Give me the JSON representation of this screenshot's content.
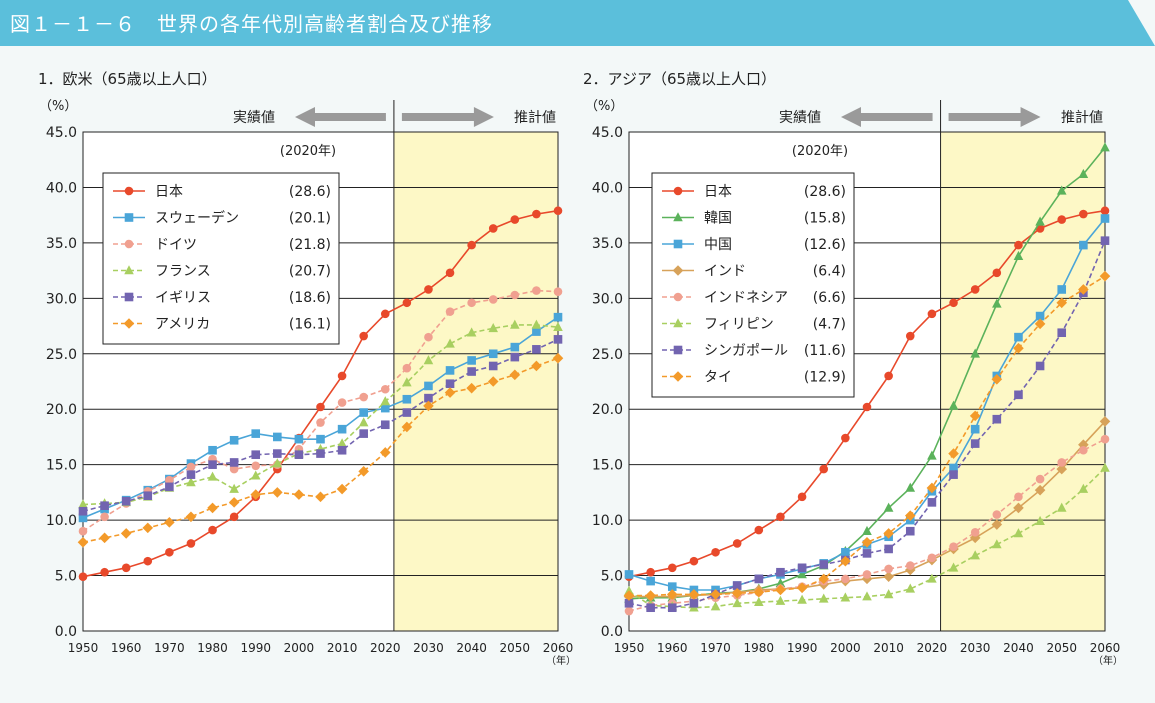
{
  "figure_title": "図１－１－６　世界の各年代別高齢者割合及び推移",
  "colors": {
    "banner": "#5bbfdb",
    "projection_bg": "#fdf8c6",
    "arrow": "#9a9a9a"
  },
  "chart_data": [
    {
      "type": "line",
      "title": "1．欧米（65歳以上人口）",
      "ylabel": "（%）",
      "xunit": "（年）",
      "actual_label": "実績値",
      "projection_label": "推計値",
      "legend_header": "(2020年)",
      "legend_placement": "top-left",
      "ylim": [
        0,
        45
      ],
      "xlim": [
        1950,
        2060
      ],
      "yticks": [
        "0.0",
        "5.0",
        "10.0",
        "15.0",
        "20.0",
        "25.0",
        "30.0",
        "35.0",
        "40.0",
        "45.0"
      ],
      "xticks": [
        "1950",
        "1960",
        "1970",
        "1980",
        "1990",
        "2000",
        "2010",
        "2020",
        "2030",
        "2040",
        "2050",
        "2060"
      ],
      "projection_start": 2022,
      "grid": true,
      "x": [
        1950,
        1955,
        1960,
        1965,
        1970,
        1975,
        1980,
        1985,
        1990,
        1995,
        2000,
        2005,
        2010,
        2015,
        2020,
        2025,
        2030,
        2035,
        2040,
        2045,
        2050,
        2055,
        2060
      ],
      "series": [
        {
          "name": "日本",
          "value_2020": "(28.6)",
          "color": "#e8492b",
          "marker": "circle",
          "dash": false,
          "values": [
            4.9,
            5.3,
            5.7,
            6.3,
            7.1,
            7.9,
            9.1,
            10.3,
            12.1,
            14.6,
            17.4,
            20.2,
            23.0,
            26.6,
            28.6,
            29.6,
            30.8,
            32.3,
            34.8,
            36.3,
            37.1,
            37.6,
            37.9
          ]
        },
        {
          "name": "スウェーデン",
          "value_2020": "(20.1)",
          "color": "#4aa5d8",
          "marker": "square",
          "dash": false,
          "values": [
            10.2,
            11.0,
            11.8,
            12.7,
            13.7,
            15.1,
            16.3,
            17.2,
            17.8,
            17.5,
            17.3,
            17.3,
            18.2,
            19.7,
            20.1,
            20.9,
            22.1,
            23.5,
            24.4,
            25.0,
            25.6,
            27.0,
            28.3
          ]
        },
        {
          "name": "ドイツ",
          "value_2020": "(21.8)",
          "color": "#f0a090",
          "marker": "circle",
          "dash": true,
          "values": [
            9.0,
            10.3,
            11.5,
            12.6,
            13.6,
            14.8,
            15.5,
            14.6,
            14.9,
            15.0,
            16.4,
            18.8,
            20.6,
            21.1,
            21.8,
            23.7,
            26.5,
            28.8,
            29.6,
            29.9,
            30.3,
            30.7,
            30.6
          ]
        },
        {
          "name": "フランス",
          "value_2020": "(20.7)",
          "color": "#a8cf60",
          "marker": "triangle",
          "dash": true,
          "values": [
            11.4,
            11.5,
            11.6,
            12.1,
            12.9,
            13.4,
            13.9,
            12.8,
            14.0,
            15.1,
            16.0,
            16.4,
            16.9,
            18.8,
            20.7,
            22.4,
            24.4,
            25.9,
            26.9,
            27.3,
            27.6,
            27.6,
            27.4
          ]
        },
        {
          "name": "イギリス",
          "value_2020": "(18.6)",
          "color": "#7264b0",
          "marker": "square",
          "dash": true,
          "values": [
            10.8,
            11.3,
            11.7,
            12.2,
            13.0,
            14.1,
            15.0,
            15.2,
            15.9,
            16.0,
            15.9,
            16.0,
            16.3,
            17.8,
            18.6,
            19.7,
            21.0,
            22.3,
            23.4,
            23.9,
            24.7,
            25.4,
            26.3
          ]
        },
        {
          "name": "アメリカ",
          "value_2020": "(16.1)",
          "color": "#f39a2a",
          "marker": "diamond",
          "dash": true,
          "values": [
            8.0,
            8.4,
            8.8,
            9.3,
            9.8,
            10.3,
            11.1,
            11.6,
            12.3,
            12.5,
            12.3,
            12.1,
            12.8,
            14.4,
            16.1,
            18.4,
            20.3,
            21.5,
            21.9,
            22.5,
            23.1,
            23.9,
            24.6
          ]
        }
      ]
    },
    {
      "type": "line",
      "title": "2．アジア（65歳以上人口）",
      "ylabel": "（%）",
      "xunit": "（年）",
      "actual_label": "実績値",
      "projection_label": "推計値",
      "legend_header": "(2020年)",
      "legend_placement": "top-left",
      "ylim": [
        0,
        45
      ],
      "xlim": [
        1950,
        2060
      ],
      "yticks": [
        "0.0",
        "5.0",
        "10.0",
        "15.0",
        "20.0",
        "25.0",
        "30.0",
        "35.0",
        "40.0",
        "45.0"
      ],
      "xticks": [
        "1950",
        "1960",
        "1970",
        "1980",
        "1990",
        "2000",
        "2010",
        "2020",
        "2030",
        "2040",
        "2050",
        "2060"
      ],
      "projection_start": 2022,
      "grid": true,
      "x": [
        1950,
        1955,
        1960,
        1965,
        1970,
        1975,
        1980,
        1985,
        1990,
        1995,
        2000,
        2005,
        2010,
        2015,
        2020,
        2025,
        2030,
        2035,
        2040,
        2045,
        2050,
        2055,
        2060
      ],
      "series": [
        {
          "name": "日本",
          "value_2020": "(28.6)",
          "color": "#e8492b",
          "marker": "circle",
          "dash": false,
          "values": [
            4.9,
            5.3,
            5.7,
            6.3,
            7.1,
            7.9,
            9.1,
            10.3,
            12.1,
            14.6,
            17.4,
            20.2,
            23.0,
            26.6,
            28.6,
            29.6,
            30.8,
            32.3,
            34.8,
            36.3,
            37.1,
            37.6,
            37.9
          ]
        },
        {
          "name": "韓国",
          "value_2020": "(15.8)",
          "color": "#5bb25b",
          "marker": "triangle",
          "dash": false,
          "values": [
            2.9,
            3.0,
            3.0,
            3.2,
            3.4,
            3.5,
            3.8,
            4.3,
            5.1,
            5.9,
            7.2,
            9.0,
            11.1,
            12.9,
            15.8,
            20.3,
            25.0,
            29.5,
            33.8,
            36.9,
            39.7,
            41.2,
            43.6
          ]
        },
        {
          "name": "中国",
          "value_2020": "(12.6)",
          "color": "#4aa5d8",
          "marker": "square",
          "dash": false,
          "values": [
            5.1,
            4.5,
            4.0,
            3.7,
            3.7,
            4.1,
            4.7,
            5.1,
            5.6,
            6.1,
            7.1,
            7.8,
            8.5,
            10.0,
            12.6,
            14.7,
            18.2,
            23.0,
            26.5,
            28.4,
            30.8,
            34.8,
            37.2
          ]
        },
        {
          "name": "インド",
          "value_2020": "(6.4)",
          "color": "#d7a25a",
          "marker": "diamond",
          "dash": false,
          "values": [
            3.1,
            3.1,
            3.1,
            3.2,
            3.3,
            3.5,
            3.7,
            3.8,
            3.9,
            4.2,
            4.5,
            4.7,
            4.9,
            5.5,
            6.4,
            7.4,
            8.4,
            9.6,
            11.1,
            12.7,
            14.6,
            16.8,
            18.9
          ]
        },
        {
          "name": "インドネシア",
          "value_2020": "(6.6)",
          "color": "#f0a090",
          "marker": "circle",
          "dash": true,
          "values": [
            1.8,
            2.3,
            2.5,
            2.7,
            3.0,
            3.2,
            3.5,
            3.8,
            4.0,
            4.5,
            4.7,
            5.1,
            5.6,
            5.9,
            6.6,
            7.6,
            8.9,
            10.5,
            12.1,
            13.7,
            15.2,
            16.3,
            17.3
          ]
        },
        {
          "name": "フィリピン",
          "value_2020": "(4.7)",
          "color": "#a8cf60",
          "marker": "triangle",
          "dash": true,
          "values": [
            3.6,
            2.3,
            2.2,
            2.1,
            2.2,
            2.5,
            2.6,
            2.7,
            2.8,
            2.9,
            3.0,
            3.1,
            3.3,
            3.8,
            4.7,
            5.7,
            6.8,
            7.8,
            8.8,
            9.9,
            11.1,
            12.8,
            14.7
          ]
        },
        {
          "name": "シンガポール",
          "value_2020": "(11.6)",
          "color": "#7264b0",
          "marker": "square",
          "dash": true,
          "values": [
            2.5,
            2.1,
            2.1,
            2.5,
            3.3,
            4.1,
            4.7,
            5.3,
            5.7,
            6.0,
            6.4,
            7.0,
            7.4,
            9.0,
            11.6,
            14.1,
            16.9,
            19.1,
            21.3,
            23.9,
            26.9,
            30.5,
            35.2
          ]
        },
        {
          "name": "タイ",
          "value_2020": "(12.9)",
          "color": "#f39a2a",
          "marker": "diamond",
          "dash": true,
          "values": [
            3.2,
            3.2,
            3.3,
            3.3,
            3.3,
            3.4,
            3.5,
            3.7,
            3.9,
            4.7,
            6.3,
            8.0,
            8.8,
            10.4,
            12.9,
            16.0,
            19.4,
            22.7,
            25.5,
            27.7,
            29.6,
            30.8,
            32.0
          ]
        }
      ]
    }
  ]
}
